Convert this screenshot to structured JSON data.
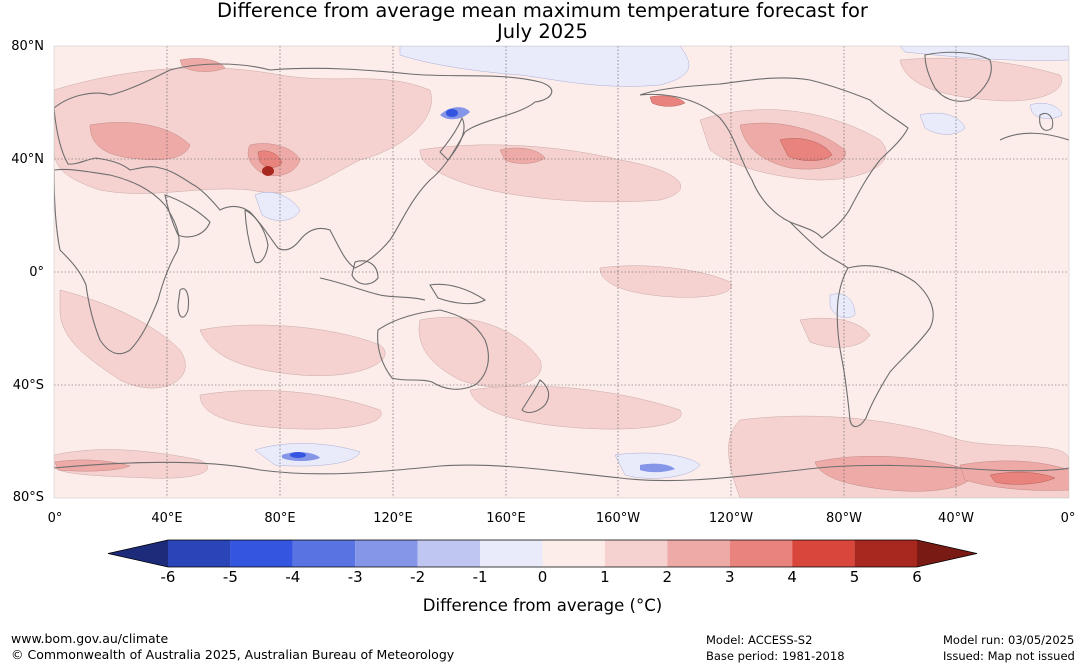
{
  "title_line1": "Difference from average mean maximum temperature forecast for",
  "title_line2": "July 2025",
  "map": {
    "lat_labels": [
      "80°N",
      "40°N",
      "0°",
      "40°S",
      "80°S"
    ],
    "lat_values": [
      80,
      40,
      0,
      -40,
      -80
    ],
    "lon_labels": [
      "0°",
      "40°E",
      "80°E",
      "120°E",
      "160°E",
      "160°W",
      "120°W",
      "80°W",
      "40°W",
      "0°"
    ],
    "lon_values": [
      0,
      40,
      80,
      120,
      160,
      200,
      240,
      280,
      320,
      360
    ],
    "lon_range": [
      0,
      360
    ],
    "lat_range": [
      -80,
      80
    ],
    "gridlines": true,
    "coastline_color": "#6e6e6e",
    "background_anomaly_color": "#fcecea"
  },
  "colorbar": {
    "ticks": [
      "-6",
      "-5",
      "-4",
      "-3",
      "-2",
      "-1",
      "0",
      "1",
      "2",
      "3",
      "4",
      "5",
      "6"
    ],
    "colors": [
      "#1c2b7a",
      "#2a45b8",
      "#3355e0",
      "#5a73e2",
      "#8595e8",
      "#bfc6f2",
      "#e9ebfb",
      "#fcecea",
      "#f5d2d0",
      "#eeaaa6",
      "#e8837d",
      "#d9463c",
      "#a8271f",
      "#7a1a14"
    ],
    "label": "Difference from average (°C)"
  },
  "footer": {
    "url": "www.bom.gov.au/climate",
    "copyright": "© Commonwealth of Australia 2025, Australian Bureau of Meteorology",
    "model": "Model: ACCESS-S2",
    "base_period": "Base period: 1981-2018",
    "model_run": "Model run: 03/05/2025",
    "issued": "Issued: Map not issued"
  }
}
